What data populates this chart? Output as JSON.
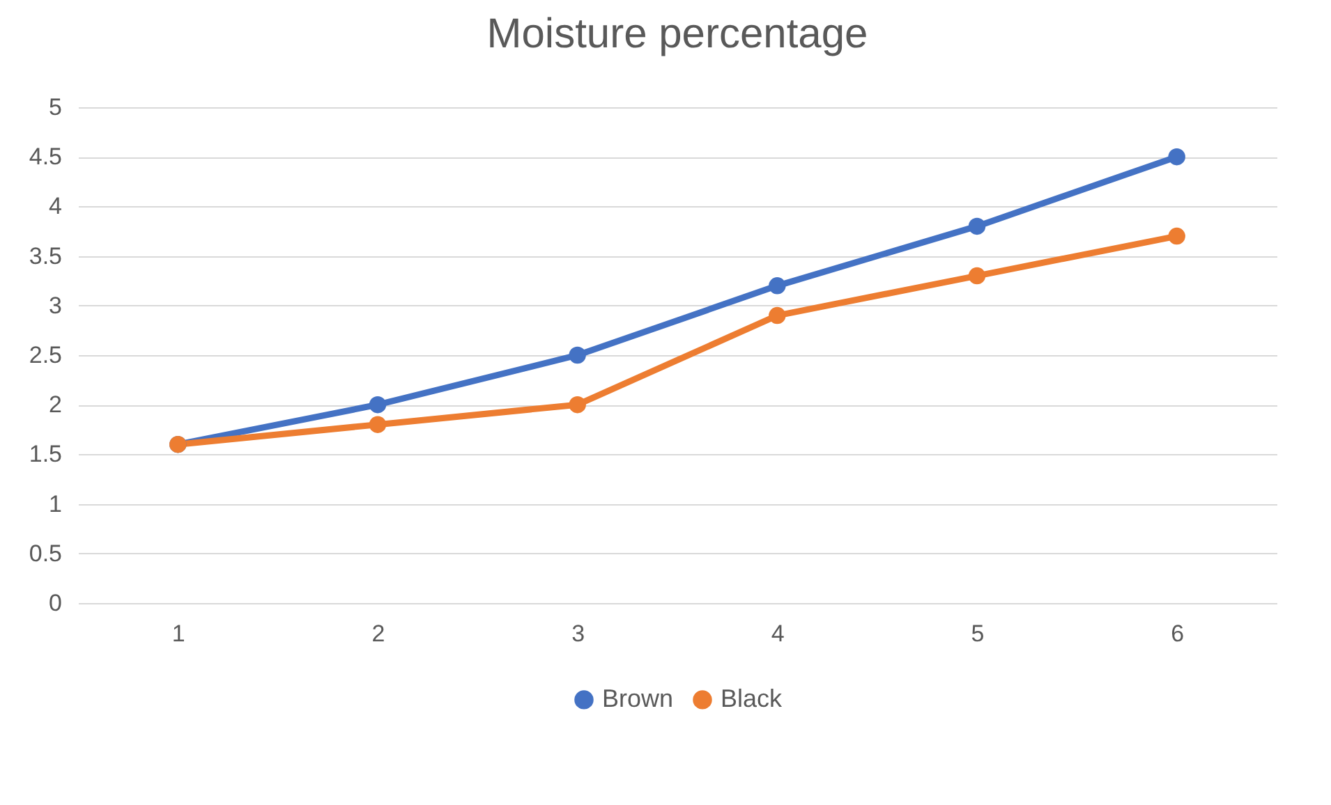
{
  "chart_data": {
    "type": "line",
    "title": "Moisture percentage",
    "categories": [
      "1",
      "2",
      "3",
      "4",
      "5",
      "6"
    ],
    "series": [
      {
        "name": "Brown",
        "color": "#4472c4",
        "values": [
          1.6,
          2.0,
          2.5,
          3.2,
          3.8,
          4.5
        ]
      },
      {
        "name": "Black",
        "color": "#ed7d31",
        "values": [
          1.6,
          1.8,
          2.0,
          2.9,
          3.3,
          3.7
        ]
      }
    ],
    "ylim": [
      0,
      5
    ],
    "yticks": [
      0,
      0.5,
      1,
      1.5,
      2,
      2.5,
      3,
      3.5,
      4,
      4.5,
      5
    ],
    "grid": "y",
    "legend": "bottom",
    "marker": "circle",
    "line_style": "solid"
  }
}
